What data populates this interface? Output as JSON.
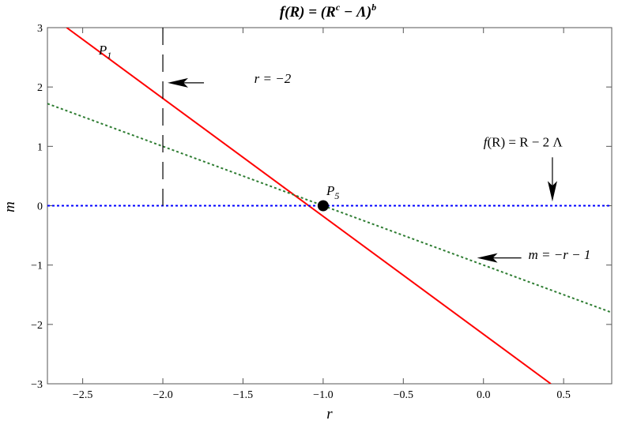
{
  "chart_data": {
    "type": "line",
    "title": "f(R) = (R^c − Λ)^b",
    "xlabel": "r",
    "ylabel": "m",
    "xlim": [
      -2.72,
      0.8
    ],
    "ylim": [
      -3,
      3
    ],
    "x_ticks": [
      -2.5,
      -2.0,
      -1.5,
      -1.0,
      -0.5,
      0.0,
      0.5
    ],
    "x_tick_labels": [
      "−2.5",
      "−2.0",
      "−1.5",
      "−1.0",
      "−0.5",
      "0.0",
      "0.5"
    ],
    "y_ticks": [
      -3,
      -2,
      -1,
      0,
      1,
      2,
      3
    ],
    "y_tick_labels": [
      "−3",
      "−2",
      "−1",
      "0",
      "1",
      "2",
      "3"
    ],
    "grid": false,
    "series": [
      {
        "style": "solid",
        "color": "#ff0000",
        "x": [
          -2.6,
          0.42
        ],
        "y": [
          3.0,
          -3.0
        ]
      },
      {
        "style": "dotted",
        "color": "#2e7d32",
        "x": [
          -2.72,
          0.8
        ],
        "y": [
          1.72,
          -1.8
        ]
      },
      {
        "style": "dotted",
        "color": "#0000ff",
        "x": [
          -2.72,
          0.8
        ],
        "y": [
          0.0,
          0.0
        ]
      },
      {
        "style": "dashed",
        "color": "#000000",
        "x": [
          -2.0,
          -2.0
        ],
        "y": [
          3.0,
          0.0
        ]
      }
    ],
    "points": [
      {
        "label": "P5",
        "x": -1.0,
        "y": 0.0
      }
    ],
    "annotations": {
      "p1": {
        "label": "P",
        "sub": "1",
        "x": -2.4,
        "y": 2.55
      },
      "p5": {
        "label": "P",
        "sub": "5",
        "x": -0.98,
        "y": 0.18
      },
      "r_line": {
        "text": "r = −2",
        "x": -1.43,
        "y": 2.07,
        "arrow_tip": [
          -2.0,
          2.07
        ]
      },
      "fR": {
        "text_left": "f",
        "text_mid": "(R) = R − 2 ",
        "text_right": "Λ",
        "x": 0.0,
        "y": 1.0,
        "arrow_tip": [
          0.43,
          0.07
        ]
      },
      "m_line": {
        "text": "m = −r − 1",
        "x": 0.28,
        "y": -0.9,
        "arrow_tip": [
          -0.04,
          -0.88
        ]
      }
    }
  }
}
